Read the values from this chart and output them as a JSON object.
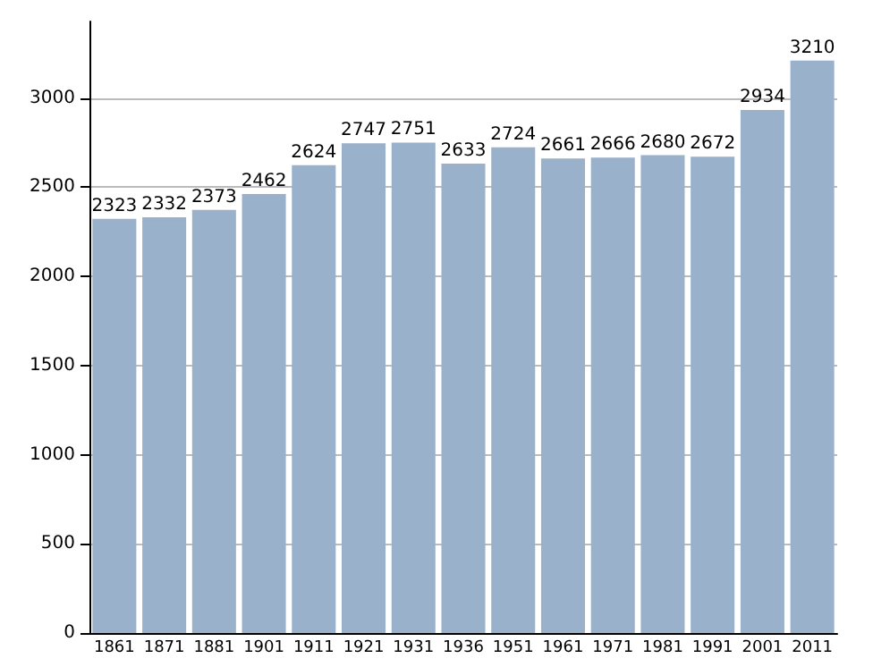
{
  "chart_data": {
    "type": "bar",
    "categories": [
      "1861",
      "1871",
      "1881",
      "1901",
      "1911",
      "1921",
      "1931",
      "1936",
      "1951",
      "1961",
      "1971",
      "1981",
      "1991",
      "2001",
      "2011"
    ],
    "values": [
      2323,
      2332,
      2373,
      2462,
      2624,
      2747,
      2751,
      2633,
      2724,
      2661,
      2666,
      2680,
      2672,
      2934,
      3210
    ],
    "color": "#9ab1cc",
    "ylim": [
      0,
      3430
    ],
    "yticks": [
      0,
      500,
      1000,
      1500,
      2000,
      2500,
      3000
    ],
    "grid": "y",
    "data_labels": true
  }
}
